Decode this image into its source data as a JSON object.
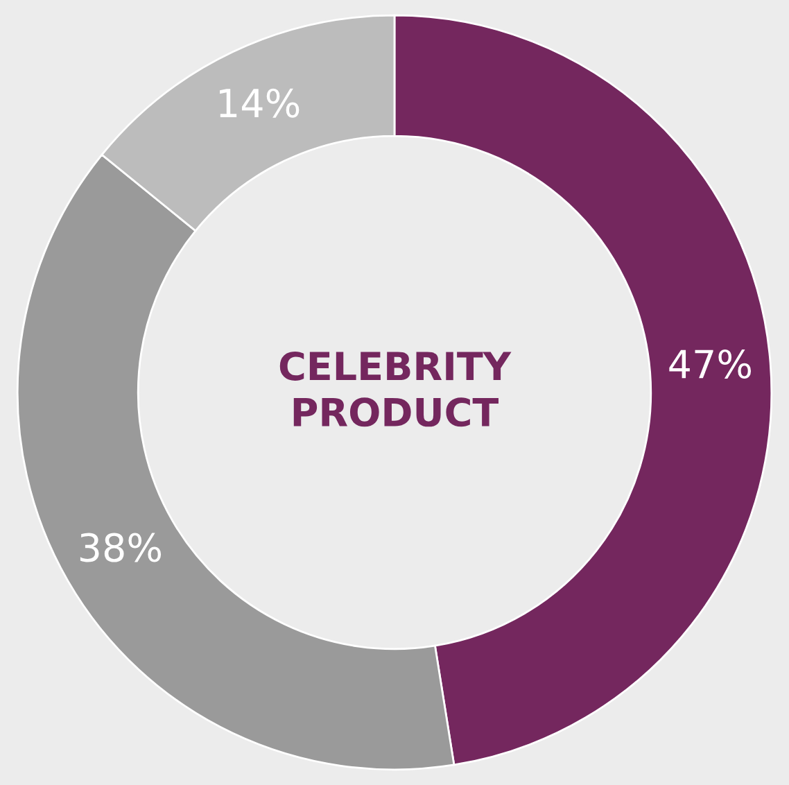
{
  "chart_data": {
    "type": "donut",
    "title": "CELEBRITY\nPRODUCT",
    "categories": [
      null,
      null,
      null
    ],
    "values": [
      47,
      38,
      14
    ],
    "colors": [
      "#74275e",
      "#9a9a9a",
      "#bcbcbc"
    ],
    "value_labels": [
      "47%",
      "38%",
      "14%"
    ]
  }
}
